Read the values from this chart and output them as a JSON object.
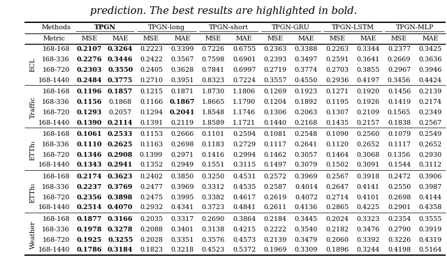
{
  "title_text": "prediction. The best results are highlighted in bold.",
  "datasets": [
    "ECL",
    "Traffic",
    "ETTh₁",
    "ETTh₂",
    "Weather"
  ],
  "horizons": [
    "168-168",
    "168-336",
    "168-720",
    "168-1440"
  ],
  "method_names": [
    "TPGN",
    "TPGN-long",
    "TPGN-short",
    "TPGN-GRU",
    "TPGN-LSTM",
    "TPGN-MLP"
  ],
  "data": {
    "ECL": {
      "168-168": {
        "TPGN": [
          0.2107,
          0.3264
        ],
        "TPGN-long": [
          0.2223,
          0.3399
        ],
        "TPGN-short": [
          0.7226,
          0.6755
        ],
        "TPGN-GRU": [
          0.2363,
          0.3388
        ],
        "TPGN-LSTM": [
          0.2263,
          0.3344
        ],
        "TPGN-MLP": [
          0.2377,
          0.3425
        ]
      },
      "168-336": {
        "TPGN": [
          0.2276,
          0.3446
        ],
        "TPGN-long": [
          0.2422,
          0.3567
        ],
        "TPGN-short": [
          0.7598,
          0.6901
        ],
        "TPGN-GRU": [
          0.2393,
          0.3497
        ],
        "TPGN-LSTM": [
          0.2591,
          0.3641
        ],
        "TPGN-MLP": [
          0.2669,
          0.3636
        ]
      },
      "168-720": {
        "TPGN": [
          0.2303,
          0.355
        ],
        "TPGN-long": [
          0.2405,
          0.3628
        ],
        "TPGN-short": [
          0.7841,
          0.6997
        ],
        "TPGN-GRU": [
          0.2719,
          0.3774
        ],
        "TPGN-LSTM": [
          0.2703,
          0.3855
        ],
        "TPGN-MLP": [
          0.2967,
          0.3946
        ]
      },
      "168-1440": {
        "TPGN": [
          0.2484,
          0.3775
        ],
        "TPGN-long": [
          0.271,
          0.3951
        ],
        "TPGN-short": [
          0.8323,
          0.7224
        ],
        "TPGN-GRU": [
          0.3557,
          0.455
        ],
        "TPGN-LSTM": [
          0.2936,
          0.4197
        ],
        "TPGN-MLP": [
          0.3456,
          0.4424
        ]
      }
    },
    "Traffic": {
      "168-168": {
        "TPGN": [
          0.1196,
          0.1857
        ],
        "TPGN-long": [
          0.1215,
          0.1871
        ],
        "TPGN-short": [
          1.873,
          1.1806
        ],
        "TPGN-GRU": [
          0.1269,
          0.1923
        ],
        "TPGN-LSTM": [
          0.1271,
          0.192
        ],
        "TPGN-MLP": [
          0.1456,
          0.2139
        ]
      },
      "168-336": {
        "TPGN": [
          0.1156,
          0.1868
        ],
        "TPGN-long": [
          0.1166,
          0.1867
        ],
        "TPGN-short": [
          1.8665,
          1.179
        ],
        "TPGN-GRU": [
          0.1204,
          0.1892
        ],
        "TPGN-LSTM": [
          0.1195,
          0.1926
        ],
        "TPGN-MLP": [
          0.1419,
          0.2174
        ]
      },
      "168-720": {
        "TPGN": [
          0.1293,
          0.2057
        ],
        "TPGN-long": [
          0.1294,
          0.2041
        ],
        "TPGN-short": [
          1.8548,
          1.1746
        ],
        "TPGN-GRU": [
          0.1306,
          0.2063
        ],
        "TPGN-LSTM": [
          0.1307,
          0.2109
        ],
        "TPGN-MLP": [
          0.1565,
          0.2349
        ]
      },
      "168-1440": {
        "TPGN": [
          0.139,
          0.2114
        ],
        "TPGN-long": [
          0.1391,
          0.2119
        ],
        "TPGN-short": [
          1.8589,
          1.1721
        ],
        "TPGN-GRU": [
          0.144,
          0.2168
        ],
        "TPGN-LSTM": [
          0.1435,
          0.2157
        ],
        "TPGN-MLP": [
          0.1838,
          0.2567
        ]
      }
    },
    "ETTh₁": {
      "168-168": {
        "TPGN": [
          0.1061,
          0.2533
        ],
        "TPGN-long": [
          0.1153,
          0.2666
        ],
        "TPGN-short": [
          0.1101,
          0.2594
        ],
        "TPGN-GRU": [
          0.1081,
          0.2548
        ],
        "TPGN-LSTM": [
          0.109,
          0.256
        ],
        "TPGN-MLP": [
          0.1079,
          0.2549
        ]
      },
      "168-336": {
        "TPGN": [
          0.111,
          0.2625
        ],
        "TPGN-long": [
          0.1163,
          0.2698
        ],
        "TPGN-short": [
          0.1183,
          0.2729
        ],
        "TPGN-GRU": [
          0.1117,
          0.2641
        ],
        "TPGN-LSTM": [
          0.112,
          0.2652
        ],
        "TPGN-MLP": [
          0.1117,
          0.2652
        ]
      },
      "168-720": {
        "TPGN": [
          0.1346,
          0.2908
        ],
        "TPGN-long": [
          0.1399,
          0.2971
        ],
        "TPGN-short": [
          0.1416,
          0.2994
        ],
        "TPGN-GRU": [
          0.1462,
          0.3057
        ],
        "TPGN-LSTM": [
          0.1464,
          0.3068
        ],
        "TPGN-MLP": [
          0.1356,
          0.293
        ]
      },
      "168-1440": {
        "TPGN": [
          0.1343,
          0.2941
        ],
        "TPGN-long": [
          0.1352,
          0.2949
        ],
        "TPGN-short": [
          0.1551,
          0.3115
        ],
        "TPGN-GRU": [
          0.1497,
          0.3079
        ],
        "TPGN-LSTM": [
          0.1502,
          0.3091
        ],
        "TPGN-MLP": [
          0.1544,
          0.3112
        ]
      }
    },
    "ETTh₂": {
      "168-168": {
        "TPGN": [
          0.2174,
          0.3623
        ],
        "TPGN-long": [
          0.2402,
          0.385
        ],
        "TPGN-short": [
          0.325,
          0.4531
        ],
        "TPGN-GRU": [
          0.2572,
          0.3969
        ],
        "TPGN-LSTM": [
          0.2567,
          0.3918
        ],
        "TPGN-MLP": [
          0.2472,
          0.3906
        ]
      },
      "168-336": {
        "TPGN": [
          0.2237,
          0.3769
        ],
        "TPGN-long": [
          0.2477,
          0.3969
        ],
        "TPGN-short": [
          0.3312,
          0.4535
        ],
        "TPGN-GRU": [
          0.2587,
          0.4014
        ],
        "TPGN-LSTM": [
          0.2647,
          0.4141
        ],
        "TPGN-MLP": [
          0.255,
          0.3987
        ]
      },
      "168-720": {
        "TPGN": [
          0.2356,
          0.3898
        ],
        "TPGN-long": [
          0.2475,
          0.3995
        ],
        "TPGN-short": [
          0.3382,
          0.4617
        ],
        "TPGN-GRU": [
          0.2619,
          0.4072
        ],
        "TPGN-LSTM": [
          0.2714,
          0.4101
        ],
        "TPGN-MLP": [
          0.2698,
          0.4144
        ]
      },
      "168-1440": {
        "TPGN": [
          0.2514,
          0.407
        ],
        "TPGN-long": [
          0.2932,
          0.4341
        ],
        "TPGN-short": [
          0.3723,
          0.4841
        ],
        "TPGN-GRU": [
          0.2611,
          0.4136
        ],
        "TPGN-LSTM": [
          0.2865,
          0.4225
        ],
        "TPGN-MLP": [
          0.2901,
          0.4358
        ]
      }
    },
    "Weather": {
      "168-168": {
        "TPGN": [
          0.1877,
          0.3166
        ],
        "TPGN-long": [
          0.2035,
          0.3317
        ],
        "TPGN-short": [
          0.269,
          0.3864
        ],
        "TPGN-GRU": [
          0.2184,
          0.3445
        ],
        "TPGN-LSTM": [
          0.2024,
          0.3323
        ],
        "TPGN-MLP": [
          0.2354,
          0.3555
        ]
      },
      "168-336": {
        "TPGN": [
          0.1978,
          0.3278
        ],
        "TPGN-long": [
          0.2088,
          0.3401
        ],
        "TPGN-short": [
          0.3138,
          0.4215
        ],
        "TPGN-GRU": [
          0.2222,
          0.354
        ],
        "TPGN-LSTM": [
          0.2182,
          0.3476
        ],
        "TPGN-MLP": [
          0.279,
          0.3919
        ]
      },
      "168-720": {
        "TPGN": [
          0.1925,
          0.3255
        ],
        "TPGN-long": [
          0.2028,
          0.3351
        ],
        "TPGN-short": [
          0.3576,
          0.4573
        ],
        "TPGN-GRU": [
          0.2139,
          0.3479
        ],
        "TPGN-LSTM": [
          0.206,
          0.3392
        ],
        "TPGN-MLP": [
          0.3226,
          0.4319
        ]
      },
      "168-1440": {
        "TPGN": [
          0.1786,
          0.3184
        ],
        "TPGN-long": [
          0.1823,
          0.3218
        ],
        "TPGN-short": [
          0.4523,
          0.5372
        ],
        "TPGN-GRU": [
          0.1969,
          0.3309
        ],
        "TPGN-LSTM": [
          0.1896,
          0.3244
        ],
        "TPGN-MLP": [
          0.4198,
          0.5164
        ]
      }
    }
  },
  "bold_values": {
    "ECL": {
      "168-168": {
        "TPGN": [
          true,
          true
        ]
      },
      "168-336": {
        "TPGN": [
          true,
          true
        ]
      },
      "168-720": {
        "TPGN": [
          true,
          true
        ]
      },
      "168-1440": {
        "TPGN": [
          true,
          true
        ]
      }
    },
    "Traffic": {
      "168-168": {
        "TPGN": [
          true,
          true
        ]
      },
      "168-336": {
        "TPGN": [
          true,
          false
        ],
        "TPGN-long": [
          false,
          true
        ]
      },
      "168-720": {
        "TPGN": [
          true,
          false
        ],
        "TPGN-long": [
          false,
          true
        ]
      },
      "168-1440": {
        "TPGN": [
          true,
          true
        ]
      }
    },
    "ETTh₁": {
      "168-168": {
        "TPGN": [
          true,
          true
        ]
      },
      "168-336": {
        "TPGN": [
          true,
          true
        ]
      },
      "168-720": {
        "TPGN": [
          true,
          true
        ]
      },
      "168-1440": {
        "TPGN": [
          true,
          true
        ]
      }
    },
    "ETTh₂": {
      "168-168": {
        "TPGN": [
          true,
          true
        ]
      },
      "168-336": {
        "TPGN": [
          true,
          true
        ]
      },
      "168-720": {
        "TPGN": [
          true,
          true
        ]
      },
      "168-1440": {
        "TPGN": [
          true,
          true
        ]
      }
    },
    "Weather": {
      "168-168": {
        "TPGN": [
          true,
          true
        ]
      },
      "168-336": {
        "TPGN": [
          true,
          true
        ]
      },
      "168-720": {
        "TPGN": [
          true,
          true
        ]
      },
      "168-1440": {
        "TPGN": [
          true,
          true
        ]
      }
    }
  },
  "bg_color": "#ffffff",
  "title_fontsize": 10.5,
  "table_fontsize": 6.8
}
